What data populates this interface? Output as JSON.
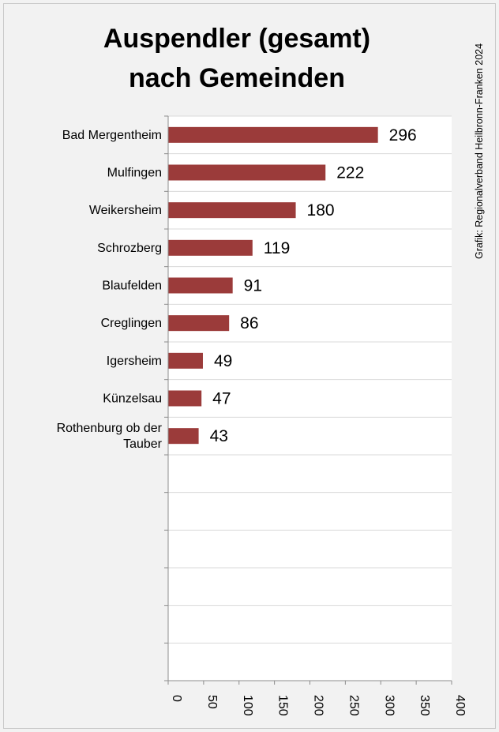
{
  "chart_data": {
    "type": "bar",
    "orientation": "horizontal",
    "title": "Auspendler (gesamt) nach Gemeinden",
    "title_lines": [
      "Auspendler (gesamt)",
      "nach Gemeinden"
    ],
    "credit": "Grafik: Regionalverband Heilbronn-Franken 2024",
    "categories": [
      "Bad Mergentheim",
      "Mulfingen",
      "Weikersheim",
      "Schrozberg",
      "Blaufelden",
      "Creglingen",
      "Igersheim",
      "Künzelsau",
      "Rothenburg ob der Tauber"
    ],
    "category_lines": [
      [
        "Bad Mergentheim"
      ],
      [
        "Mulfingen"
      ],
      [
        "Weikersheim"
      ],
      [
        "Schrozberg"
      ],
      [
        "Blaufelden"
      ],
      [
        "Creglingen"
      ],
      [
        "Igersheim"
      ],
      [
        "Künzelsau"
      ],
      [
        "Rothenburg ob der",
        "Tauber"
      ]
    ],
    "values": [
      296,
      222,
      180,
      119,
      91,
      86,
      49,
      47,
      43
    ],
    "xlim": [
      0,
      400
    ],
    "xticks": [
      "0",
      "50",
      "100",
      "150",
      "200",
      "250",
      "300",
      "350",
      "400"
    ],
    "slots": 15,
    "grid": "horizontal lines at category boundaries",
    "bar_color": "#9b3b3a",
    "xlabel": "",
    "ylabel": ""
  }
}
